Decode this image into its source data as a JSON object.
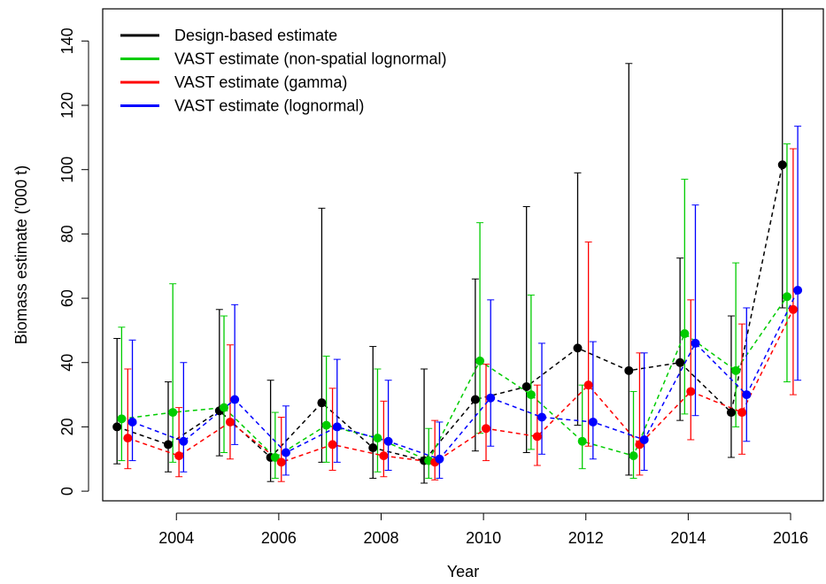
{
  "chart_data": {
    "type": "errorbar-line",
    "xlabel": "Year",
    "ylabel": "Biomass estimate ('000 t)",
    "x": [
      2003,
      2004,
      2005,
      2006,
      2007,
      2008,
      2009,
      2010,
      2011,
      2012,
      2013,
      2014,
      2015,
      2016
    ],
    "xlim": [
      2002.56,
      2016.64
    ],
    "xticks": [
      2004,
      2006,
      2008,
      2010,
      2012,
      2014,
      2016
    ],
    "ylim": [
      -3,
      150
    ],
    "yticks": [
      0,
      20,
      40,
      60,
      80,
      100,
      120,
      140
    ],
    "legend": "top-left",
    "series": [
      {
        "name": "Design-based estimate",
        "color": "#000000",
        "values": [
          20,
          14.5,
          25,
          10.5,
          27.5,
          13.5,
          9.5,
          28.5,
          32.5,
          44.5,
          37.5,
          40,
          24.5,
          101.5
        ],
        "lower": [
          8.5,
          6,
          11,
          3,
          9,
          4,
          2.5,
          12.5,
          12,
          20.5,
          5,
          22,
          10.5,
          57
        ],
        "upper": [
          47.5,
          34,
          56.5,
          34.5,
          88,
          45,
          38,
          66,
          88.5,
          99,
          133,
          72.5,
          54.5,
          160
        ]
      },
      {
        "name": "VAST estimate (non-spatial lognormal)",
        "color": "#00cc00",
        "values": [
          22.5,
          24.5,
          26,
          10.5,
          20.5,
          16.5,
          9.5,
          40.5,
          30,
          15.5,
          11,
          49,
          37.5,
          60.5
        ],
        "lower": [
          9.5,
          9,
          12,
          4,
          9,
          6,
          4,
          18,
          13,
          7,
          4,
          24,
          20,
          34
        ],
        "upper": [
          51,
          64.5,
          54.5,
          24.5,
          42,
          38,
          19.5,
          83.5,
          61,
          33,
          31,
          97,
          71,
          108
        ]
      },
      {
        "name": "VAST estimate (gamma)",
        "color": "#ff0000",
        "values": [
          16.5,
          11,
          21.5,
          9,
          14.5,
          11,
          9,
          19.5,
          17,
          33,
          14.5,
          31,
          24.5,
          56.5
        ],
        "lower": [
          7,
          4.5,
          10,
          3,
          6.5,
          4.5,
          3.5,
          9.5,
          8,
          14,
          5,
          16,
          11.5,
          30
        ],
        "upper": [
          38,
          26,
          45.5,
          23,
          32,
          28,
          22,
          39.5,
          33,
          77.5,
          43,
          59.5,
          52,
          106.5
        ]
      },
      {
        "name": "VAST estimate (lognormal)",
        "color": "#0000ff",
        "values": [
          21.5,
          15.5,
          28.5,
          12,
          20,
          15.5,
          10,
          29,
          23,
          21.5,
          16,
          46,
          30,
          62.5
        ],
        "lower": [
          9.5,
          6,
          14.5,
          5,
          9,
          6.5,
          4,
          14,
          11.5,
          10,
          6.5,
          23.5,
          15.5,
          34.5
        ],
        "upper": [
          47,
          40,
          58,
          26.5,
          41,
          34.5,
          21.5,
          59.5,
          46,
          46.5,
          43,
          89,
          57,
          113.5
        ]
      }
    ]
  }
}
